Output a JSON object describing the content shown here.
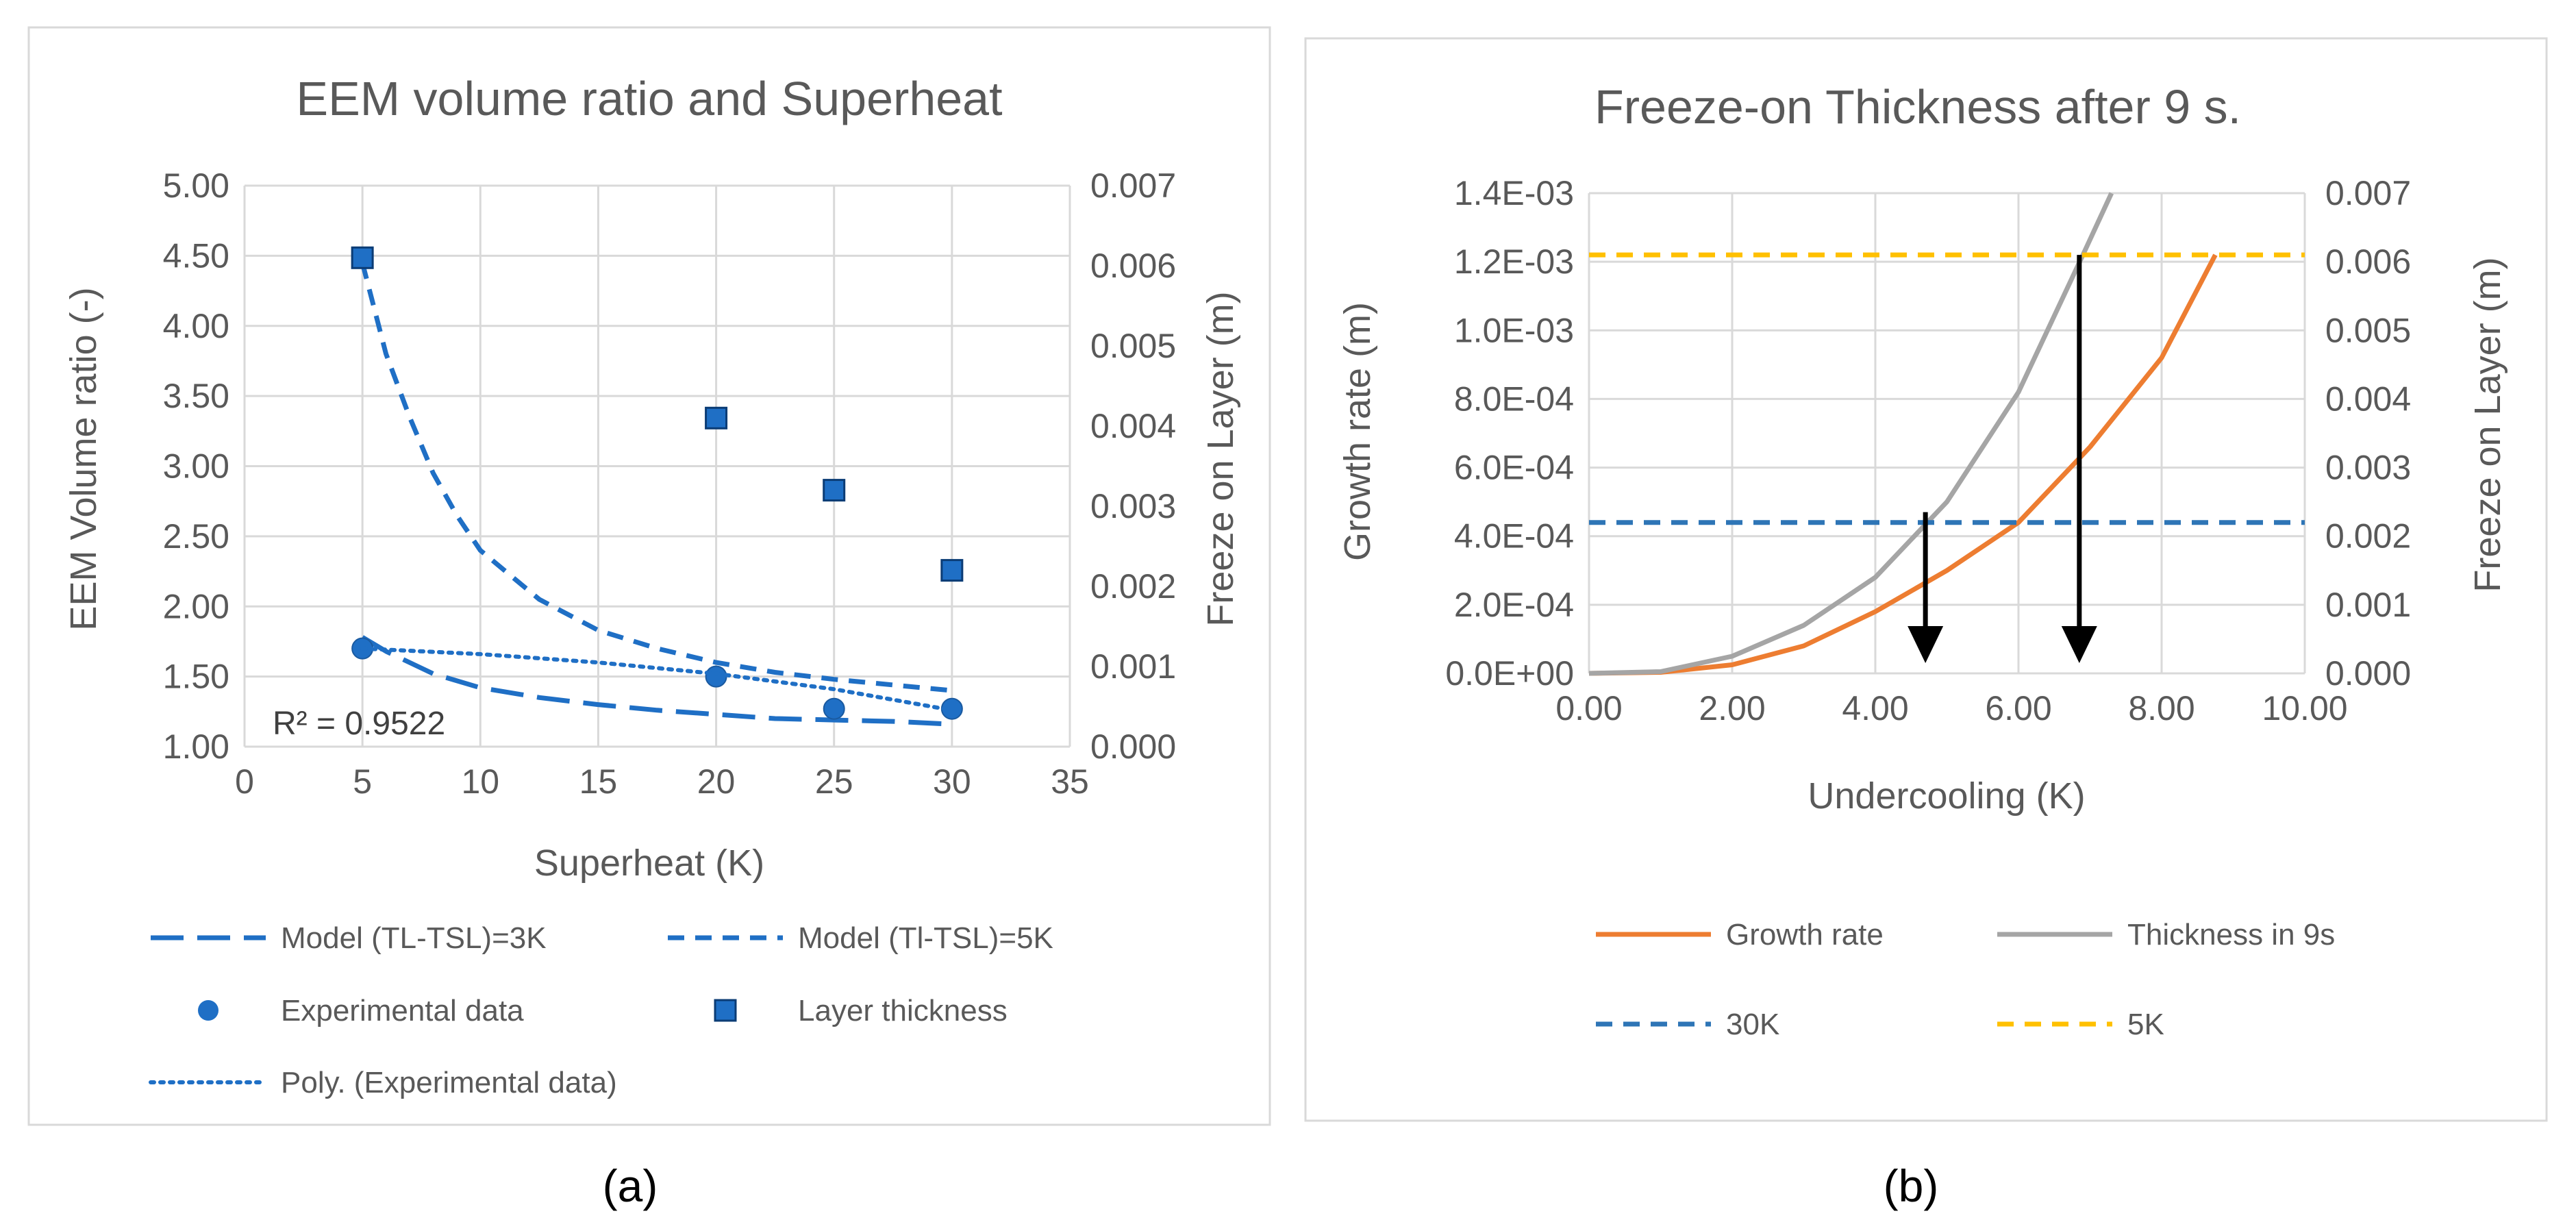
{
  "chart_data": [
    {
      "panel_label": "(a)",
      "type": "scatter",
      "title": "EEM volume ratio and Superheat",
      "xlabel": "Superheat (K)",
      "ylabel": "EEM Volume ratio (-)",
      "y2label": "Freeze on Layer (m)",
      "xlim": [
        0,
        35
      ],
      "ylim": [
        1.0,
        5.0
      ],
      "y2lim": [
        0.0,
        0.007
      ],
      "x_ticks": [
        "0",
        "5",
        "10",
        "15",
        "20",
        "25",
        "30",
        "35"
      ],
      "y_ticks": [
        "1.00",
        "1.50",
        "2.00",
        "2.50",
        "3.00",
        "3.50",
        "4.00",
        "4.50",
        "5.00"
      ],
      "y2_ticks": [
        "0.000",
        "0.001",
        "0.002",
        "0.003",
        "0.004",
        "0.005",
        "0.006",
        "0.007"
      ],
      "grid": true,
      "legend_position": "bottom",
      "annotations": [
        "R² = 0.9522"
      ],
      "series": [
        {
          "name": "Model (TL-TSL)=3K",
          "style": "long-dash",
          "axis": "left",
          "color": "#1f6fc5",
          "x": [
            5,
            6,
            8,
            10,
            12.5,
            15,
            17.5,
            20,
            22.5,
            25,
            27.5,
            30
          ],
          "y": [
            1.78,
            1.68,
            1.52,
            1.42,
            1.35,
            1.3,
            1.26,
            1.23,
            1.2,
            1.19,
            1.18,
            1.16
          ]
        },
        {
          "name": "Model (Tl-TSL)=5K",
          "style": "dash",
          "axis": "left",
          "color": "#1f6fc5",
          "x": [
            5,
            6,
            7,
            8,
            9,
            10,
            12.5,
            15,
            17.5,
            20,
            22.5,
            25,
            27.5,
            30
          ],
          "y": [
            4.45,
            3.8,
            3.35,
            2.95,
            2.65,
            2.4,
            2.05,
            1.83,
            1.7,
            1.6,
            1.53,
            1.48,
            1.44,
            1.4
          ]
        },
        {
          "name": "Experimental data",
          "style": "circle",
          "axis": "left",
          "color": "#1f6fc5",
          "x": [
            5,
            20,
            25,
            30
          ],
          "y": [
            1.7,
            1.5,
            1.27,
            1.27
          ]
        },
        {
          "name": "Layer thickness",
          "style": "square",
          "axis": "right",
          "color": "#1f6fc5",
          "x": [
            5,
            20,
            25,
            30
          ],
          "y": [
            0.0061,
            0.0041,
            0.0032,
            0.0022
          ]
        },
        {
          "name": "Poly. (Experimental data)",
          "style": "dot",
          "axis": "left",
          "color": "#1f6fc5",
          "x": [
            5,
            10,
            15,
            20,
            25,
            30
          ],
          "y": [
            1.7,
            1.66,
            1.6,
            1.52,
            1.41,
            1.26
          ]
        }
      ]
    },
    {
      "panel_label": "(b)",
      "type": "line",
      "title": "Freeze-on Thickness after 9 s.",
      "xlabel": "Undercooling (K)",
      "ylabel": "Growth rate (m)",
      "y2label": "Freeze on Layer (m)",
      "xlim": [
        0,
        10
      ],
      "ylim": [
        0,
        0.0014
      ],
      "y2lim": [
        0,
        0.007
      ],
      "x_ticks": [
        "0.00",
        "2.00",
        "4.00",
        "6.00",
        "8.00",
        "10.00"
      ],
      "y_ticks": [
        "0.0E+00",
        "2.0E-04",
        "4.0E-04",
        "6.0E-04",
        "8.0E-04",
        "1.0E-03",
        "1.2E-03",
        "1.4E-03"
      ],
      "y2_ticks": [
        "0.000",
        "0.001",
        "0.002",
        "0.003",
        "0.004",
        "0.005",
        "0.006",
        "0.007"
      ],
      "grid": true,
      "legend_position": "bottom",
      "series": [
        {
          "name": "Growth rate",
          "style": "solid",
          "axis": "left",
          "color": "#ed7d31",
          "x": [
            0,
            1,
            2,
            3,
            4,
            5,
            6,
            7,
            8,
            8.75
          ],
          "y": [
            0,
            3e-06,
            2.5e-05,
            8e-05,
            0.00018,
            0.0003,
            0.00044,
            0.00066,
            0.00092,
            0.00122
          ]
        },
        {
          "name": "Thickness in 9s",
          "style": "solid",
          "axis": "left",
          "color": "#a5a5a5",
          "x": [
            0,
            1,
            2,
            3,
            4,
            5,
            6,
            6.9,
            7.3
          ],
          "y": [
            0,
            5e-06,
            5e-05,
            0.00014,
            0.00028,
            0.0005,
            0.00082,
            0.00122,
            0.0014
          ]
        },
        {
          "name": "30K",
          "style": "dash",
          "axis": "left",
          "color": "#2e75b6",
          "x": [
            0,
            10
          ],
          "y": [
            0.00044,
            0.00044
          ]
        },
        {
          "name": "5K",
          "style": "dash",
          "axis": "left",
          "color": "#ffc000",
          "x": [
            0,
            10
          ],
          "y": [
            0.00122,
            0.00122
          ]
        }
      ],
      "arrows": [
        {
          "x": 4.7,
          "y_from": 0.00047,
          "y_to": 3e-05
        },
        {
          "x": 6.85,
          "y_from": 0.00122,
          "y_to": 3e-05
        }
      ]
    }
  ]
}
